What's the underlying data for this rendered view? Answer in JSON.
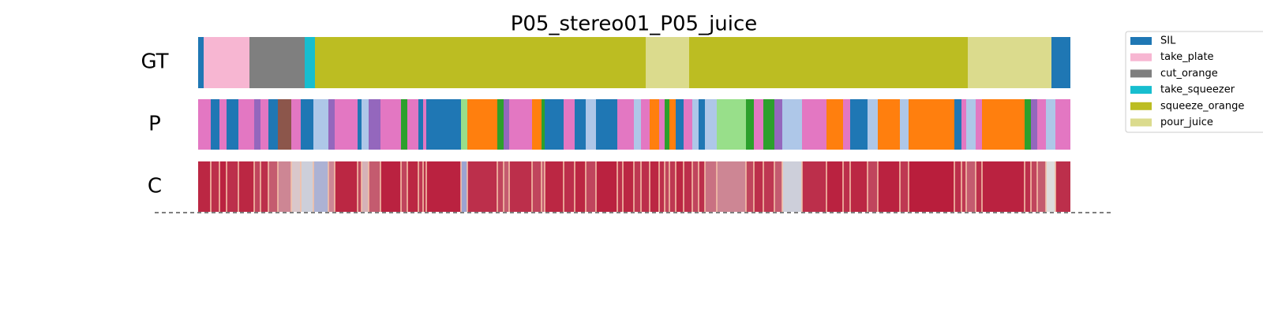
{
  "chart_data": {
    "type": "segmentation",
    "title": "P05_stereo01_P05_juice",
    "xlim": [
      0,
      1105
    ],
    "classes": [
      {
        "name": "SIL",
        "color": "#1f77b4"
      },
      {
        "name": "take_plate",
        "color": "#f7b6d2"
      },
      {
        "name": "cut_orange",
        "color": "#7f7f7f"
      },
      {
        "name": "take_squeezer",
        "color": "#17becf"
      },
      {
        "name": "squeeze_orange",
        "color": "#bcbd22"
      },
      {
        "name": "pour_juice",
        "color": "#dbdb8d"
      }
    ],
    "gt": {
      "label": "GT",
      "breaks": [
        0,
        7,
        65,
        135,
        148,
        567,
        622,
        975,
        1081,
        1105
      ],
      "classes": [
        0,
        1,
        2,
        3,
        4,
        5,
        4,
        5,
        0
      ]
    },
    "prediction": {
      "label": "P",
      "breaks": [
        0,
        16,
        27,
        36,
        51,
        71,
        79,
        89,
        101,
        118,
        130,
        146,
        165,
        173,
        202,
        207,
        216,
        231,
        257,
        265,
        279,
        285,
        289,
        333,
        341,
        379,
        387,
        394,
        423,
        435,
        439,
        463,
        477,
        491,
        504,
        531,
        538,
        552,
        561,
        572,
        584,
        591,
        597,
        605,
        615,
        626,
        634,
        642,
        657,
        694,
        704,
        716,
        730,
        740,
        765,
        796,
        817,
        826,
        848,
        861,
        889,
        900,
        958,
        967,
        973,
        985,
        993,
        1047,
        1055,
        1063,
        1074,
        1086,
        1105
      ],
      "colors": [
        "#e377c2",
        "#1f77b4",
        "#e377c2",
        "#1f77b4",
        "#e377c2",
        "#9467bd",
        "#e377c2",
        "#1f77b4",
        "#8c564b",
        "#e377c2",
        "#1f77b4",
        "#aec7e8",
        "#9467bd",
        "#e377c2",
        "#1f77b4",
        "#aec7e8",
        "#9467bd",
        "#e377c2",
        "#2ca02c",
        "#e377c2",
        "#1f77b4",
        "#e377c2",
        "#1f77b4",
        "#98df8a",
        "#ff7f0e",
        "#2ca02c",
        "#9467bd",
        "#e377c2",
        "#ff7f0e",
        "#2ca02c",
        "#1f77b4",
        "#e377c2",
        "#1f77b4",
        "#aec7e8",
        "#1f77b4",
        "#e377c2",
        "#e377c2",
        "#aec7e8",
        "#e377c2",
        "#ff7f0e",
        "#e377c2",
        "#2ca02c",
        "#ff7f0e",
        "#1f77b4",
        "#e377c2",
        "#aec7e8",
        "#1f77b4",
        "#aec7e8",
        "#98df8a",
        "#2ca02c",
        "#e377c2",
        "#2ca02c",
        "#9467bd",
        "#aec7e8",
        "#e377c2",
        "#ff7f0e",
        "#e377c2",
        "#1f77b4",
        "#aec7e8",
        "#ff7f0e",
        "#aec7e8",
        "#ff7f0e",
        "#1f77b4",
        "#e377c2",
        "#aec7e8",
        "#e377c2",
        "#ff7f0e",
        "#2ca02c",
        "#9467bd",
        "#e377c2",
        "#aec7e8",
        "#e377c2"
      ]
    },
    "confidence": {
      "label": "C",
      "values": [
        0.92,
        0.9,
        0.93,
        0.9,
        0.92,
        0.85,
        0.9,
        0.8,
        0.7,
        0.55,
        0.45,
        0.35,
        0.7,
        0.92,
        0.85,
        0.6,
        0.8,
        0.93,
        0.85,
        0.92,
        0.88,
        0.9,
        0.93,
        0.3,
        0.9,
        0.85,
        0.8,
        0.9,
        0.85,
        0.8,
        0.92,
        0.9,
        0.92,
        0.85,
        0.93,
        0.9,
        0.92,
        0.88,
        0.9,
        0.92,
        0.9,
        0.85,
        0.88,
        0.92,
        0.9,
        0.85,
        0.9,
        0.75,
        0.7,
        0.85,
        0.9,
        0.88,
        0.8,
        0.45,
        0.9,
        0.93,
        0.9,
        0.92,
        0.85,
        0.93,
        0.88,
        0.94,
        0.9,
        0.88,
        0.8,
        0.9,
        0.93,
        0.9,
        0.85,
        0.8,
        0.5,
        0.9
      ]
    }
  }
}
